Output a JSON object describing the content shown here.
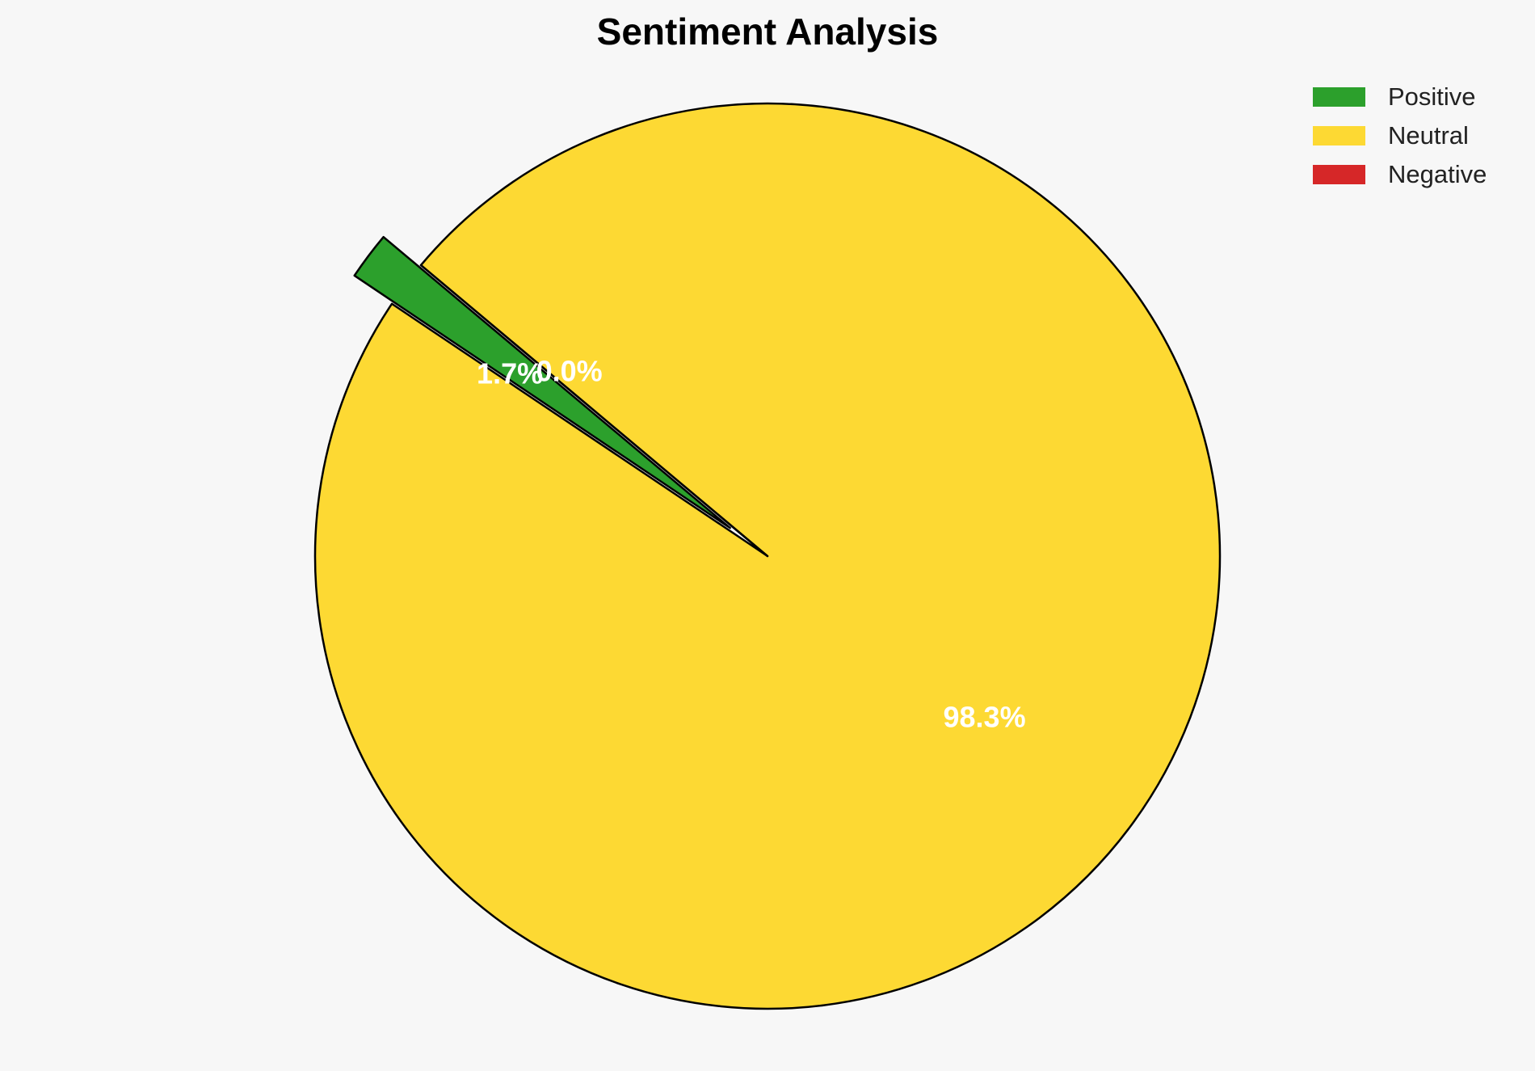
{
  "chart_data": {
    "type": "pie",
    "title": "Sentiment Analysis",
    "categories": [
      "Positive",
      "Neutral",
      "Negative"
    ],
    "values": [
      1.7,
      98.3,
      0.0
    ],
    "labels": [
      "1.7%",
      "98.3%",
      "0.0%"
    ],
    "colors": [
      "#2ca02c",
      "#fdd933",
      "#d62728"
    ],
    "exploded": [
      "Positive"
    ],
    "edge_color": "#000000",
    "legend_position": "top-right"
  }
}
